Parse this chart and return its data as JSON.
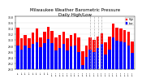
{
  "title": "Milwaukee Weather Barometric Pressure\nDaily High/Low",
  "title_fontsize": 4.0,
  "ylim": [
    29.0,
    30.8
  ],
  "yticks": [
    29.0,
    29.2,
    29.4,
    29.6,
    29.8,
    30.0,
    30.2,
    30.4,
    30.6,
    30.8
  ],
  "background_color": "#ffffff",
  "high_color": "#ff0000",
  "low_color": "#0000ff",
  "dashed_line_color": "#aaaaaa",
  "categories": [
    "1/1",
    "1/2",
    "1/3",
    "1/4",
    "1/5",
    "1/6",
    "1/7",
    "1/8",
    "1/9",
    "1/10",
    "1/11",
    "1/12",
    "1/13",
    "1/14",
    "1/15",
    "1/16",
    "1/17",
    "1/18",
    "1/19",
    "1/20",
    "1/21",
    "1/22",
    "1/23",
    "1/24",
    "1/25",
    "1/26",
    "1/27",
    "1/28",
    "1/29",
    "1/30",
    "1/31"
  ],
  "highs": [
    30.42,
    30.05,
    30.18,
    30.05,
    30.25,
    30.38,
    30.1,
    30.28,
    30.45,
    30.32,
    30.08,
    30.18,
    30.28,
    30.05,
    30.18,
    30.22,
    30.1,
    29.62,
    29.8,
    30.08,
    30.0,
    30.12,
    30.22,
    29.92,
    30.12,
    30.55,
    30.42,
    30.4,
    30.35,
    30.28,
    29.95
  ],
  "lows": [
    29.82,
    29.68,
    29.8,
    29.72,
    29.85,
    29.92,
    29.75,
    29.88,
    30.02,
    29.88,
    29.65,
    29.72,
    29.85,
    29.65,
    29.78,
    29.82,
    29.58,
    29.15,
    29.42,
    29.68,
    29.58,
    29.72,
    29.85,
    29.5,
    29.68,
    30.08,
    29.98,
    29.95,
    29.92,
    29.82,
    29.55
  ],
  "dashed_indices": [
    19,
    20,
    21,
    22
  ],
  "legend_high": "High",
  "legend_low": "Low",
  "bar_width": 0.75
}
